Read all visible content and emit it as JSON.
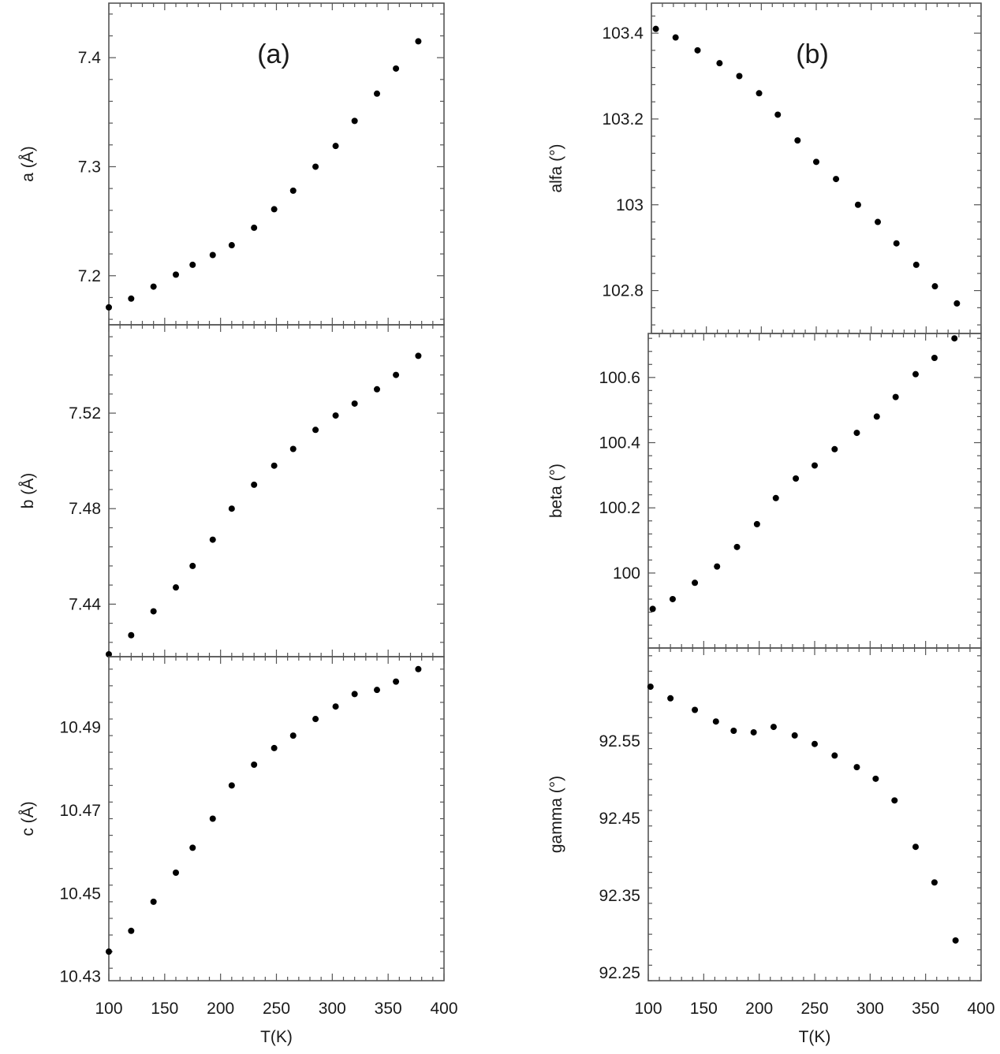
{
  "chart_data": [
    {
      "type": "scatter",
      "panel": "(a)",
      "ylabel": "a (Å)",
      "xlim": [
        100,
        400
      ],
      "ylim": [
        7.155,
        7.45
      ],
      "yticks": [
        7.2,
        7.3,
        7.4
      ],
      "ytick_labels": [
        "7.2",
        "7.3",
        "7.4"
      ],
      "x": [
        100,
        120,
        140,
        160,
        175,
        193,
        210,
        230,
        248,
        265,
        285,
        303,
        320,
        340,
        357,
        377
      ],
      "y": [
        7.171,
        7.179,
        7.19,
        7.201,
        7.21,
        7.219,
        7.228,
        7.244,
        7.261,
        7.278,
        7.3,
        7.319,
        7.342,
        7.367,
        7.39,
        7.415
      ]
    },
    {
      "type": "scatter",
      "ylabel": "b (Å)",
      "xlim": [
        100,
        400
      ],
      "ylim": [
        7.418,
        7.557
      ],
      "yticks": [
        7.44,
        7.48,
        7.52
      ],
      "ytick_labels": [
        "7.44",
        "7.48",
        "7.52"
      ],
      "x": [
        100,
        120,
        140,
        160,
        175,
        193,
        210,
        230,
        248,
        265,
        285,
        303,
        320,
        340,
        357,
        377
      ],
      "y": [
        7.419,
        7.427,
        7.437,
        7.447,
        7.456,
        7.467,
        7.48,
        7.49,
        7.498,
        7.505,
        7.513,
        7.519,
        7.524,
        7.53,
        7.536,
        7.544
      ]
    },
    {
      "type": "scatter",
      "ylabel": "c (Å)",
      "xlabel": "T(K)",
      "xlim": [
        100,
        400
      ],
      "ylim": [
        10.429,
        10.507
      ],
      "yticks": [
        10.43,
        10.45,
        10.47,
        10.49
      ],
      "ytick_labels": [
        "10.43",
        "10.45",
        "10.47",
        "10.49"
      ],
      "xticks": [
        100,
        150,
        200,
        250,
        300,
        350,
        400
      ],
      "xtick_labels": [
        "100",
        "150",
        "200",
        "250",
        "300",
        "350",
        "400"
      ],
      "x": [
        100,
        120,
        140,
        160,
        175,
        193,
        210,
        230,
        248,
        265,
        285,
        303,
        320,
        340,
        357,
        377
      ],
      "y": [
        10.436,
        10.441,
        10.448,
        10.455,
        10.461,
        10.468,
        10.476,
        10.481,
        10.485,
        10.488,
        10.492,
        10.495,
        10.498,
        10.499,
        10.501,
        10.504
      ]
    },
    {
      "type": "scatter",
      "panel": "(b)",
      "ylabel": "alfa (°)",
      "xlim": [
        100,
        400
      ],
      "ylim": [
        102.7,
        103.47
      ],
      "yticks": [
        102.8,
        103.0,
        103.2,
        103.4
      ],
      "ytick_labels": [
        "102.8",
        "103",
        "103.2",
        "103.4"
      ],
      "x": [
        104,
        122,
        142,
        162,
        180,
        198,
        215,
        233,
        250,
        268,
        288,
        306,
        323,
        341,
        358,
        378
      ],
      "y": [
        103.41,
        103.39,
        103.36,
        103.33,
        103.3,
        103.26,
        103.21,
        103.15,
        103.1,
        103.06,
        103.0,
        102.96,
        102.91,
        102.86,
        102.81,
        102.77
      ]
    },
    {
      "type": "scatter",
      "ylabel": "beta (°)",
      "xlim": [
        100,
        400
      ],
      "ylim": [
        99.77,
        100.735
      ],
      "yticks": [
        100.0,
        100.2,
        100.4,
        100.6
      ],
      "ytick_labels": [
        "100",
        "100.2",
        "100.4",
        "100.6"
      ],
      "x": [
        104,
        122,
        142,
        162,
        180,
        198,
        215,
        233,
        250,
        268,
        288,
        306,
        323,
        341,
        358,
        376
      ],
      "y": [
        99.89,
        99.92,
        99.97,
        100.02,
        100.08,
        100.15,
        100.23,
        100.29,
        100.33,
        100.38,
        100.43,
        100.48,
        100.54,
        100.61,
        100.66,
        100.72
      ]
    },
    {
      "type": "scatter",
      "ylabel": "gamma (°)",
      "xlabel": "T(K)",
      "xlim": [
        100,
        400
      ],
      "ylim": [
        92.24,
        92.67
      ],
      "yticks": [
        92.25,
        92.35,
        92.45,
        92.55
      ],
      "ytick_labels": [
        "92.25",
        "92.35",
        "92.45",
        "92.55"
      ],
      "xticks": [
        100,
        150,
        200,
        250,
        300,
        350,
        400
      ],
      "xtick_labels": [
        "100",
        "150",
        "200",
        "250",
        "300",
        "350",
        "400"
      ],
      "x": [
        102,
        120,
        142,
        161,
        177,
        195,
        213,
        232,
        250,
        268,
        288,
        305,
        322,
        341,
        358,
        377
      ],
      "y": [
        92.62,
        92.605,
        92.59,
        92.575,
        92.563,
        92.561,
        92.568,
        92.557,
        92.546,
        92.531,
        92.516,
        92.501,
        92.473,
        92.413,
        92.367,
        92.292
      ]
    }
  ]
}
